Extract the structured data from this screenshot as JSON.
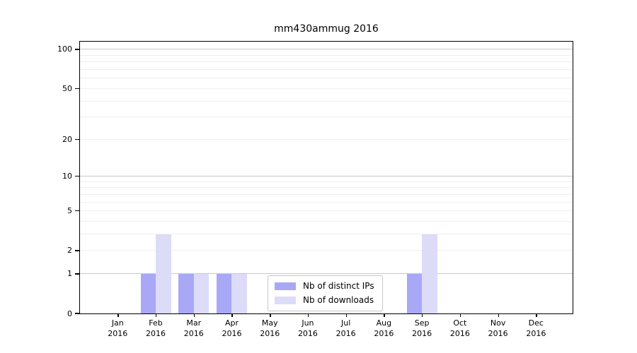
{
  "chart_data": {
    "type": "bar",
    "title": "mm430ammug 2016",
    "categories": [
      "Jan",
      "Feb",
      "Mar",
      "Apr",
      "May",
      "Jun",
      "Jul",
      "Aug",
      "Sep",
      "Oct",
      "Nov",
      "Dec"
    ],
    "year_label": "2016",
    "series": [
      {
        "name": "Nb of distinct IPs",
        "color": "#a8a8f7",
        "values": [
          0,
          1,
          1,
          1,
          0,
          0,
          0,
          0,
          1,
          0,
          0,
          0
        ]
      },
      {
        "name": "Nb of downloads",
        "color": "#dcdcf9",
        "values": [
          0,
          3,
          1,
          1,
          0,
          0,
          0,
          0,
          3,
          0,
          0,
          0
        ]
      }
    ],
    "xlabel": "",
    "ylabel": "",
    "yscale": "log1p",
    "ylim": [
      0,
      115
    ],
    "yticks": [
      0,
      1,
      2,
      5,
      10,
      20,
      50,
      100
    ],
    "grid": true,
    "grid_major": [
      1,
      10,
      100
    ],
    "grid_minor": [
      2,
      3,
      4,
      5,
      6,
      7,
      8,
      9,
      20,
      30,
      40,
      50,
      60,
      70,
      80,
      90
    ],
    "legend_position": "inside-bottom-center"
  },
  "colors": {
    "background": "#ffffff",
    "spine": "#000000",
    "grid_major": "#c9c9c9",
    "grid_minor": "#efefef",
    "bar_distinct_ips": "#a8a8f7",
    "bar_downloads": "#dcdcf9"
  }
}
